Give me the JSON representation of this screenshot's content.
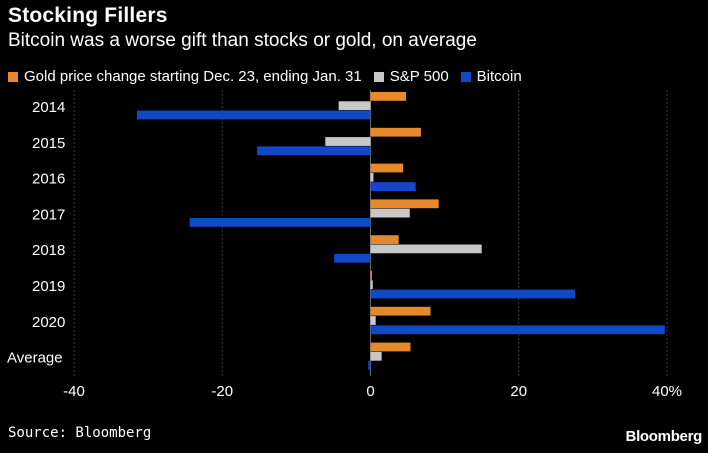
{
  "header": {
    "title": "Stocking Fillers",
    "subtitle": "Bitcoin was a worse gift than stocks or gold, on average"
  },
  "footer": {
    "source": "Source: Bloomberg",
    "brand": "Bloomberg"
  },
  "chart_data": {
    "type": "bar",
    "orientation": "horizontal",
    "title": "Stocking Fillers",
    "subtitle": "Bitcoin was a worse gift than stocks or gold, on average",
    "categories": [
      "2014",
      "2015",
      "2016",
      "2017",
      "2018",
      "2019",
      "2020",
      "Average"
    ],
    "series": [
      {
        "name": "Gold price change starting Dec. 23, ending Jan. 31",
        "color": "#e5892b",
        "values": [
          4.8,
          6.8,
          4.4,
          9.2,
          3.8,
          0.2,
          8.1,
          5.4
        ]
      },
      {
        "name": "S&P 500",
        "color": "#c8c8c8",
        "values": [
          -4.3,
          -6.1,
          0.4,
          5.3,
          15.0,
          0.3,
          0.7,
          1.5
        ]
      },
      {
        "name": "Bitcoin",
        "color": "#1148c8",
        "values": [
          -31.5,
          -15.3,
          6.1,
          -24.4,
          -4.9,
          27.6,
          39.7,
          -0.3
        ]
      }
    ],
    "xlim": [
      -40,
      40
    ],
    "xticks": [
      -40,
      -20,
      0,
      20,
      40
    ],
    "tick_labels": [
      "-40",
      "-20",
      "0",
      "20",
      "40%"
    ],
    "grid": true,
    "legend_position": "top"
  }
}
